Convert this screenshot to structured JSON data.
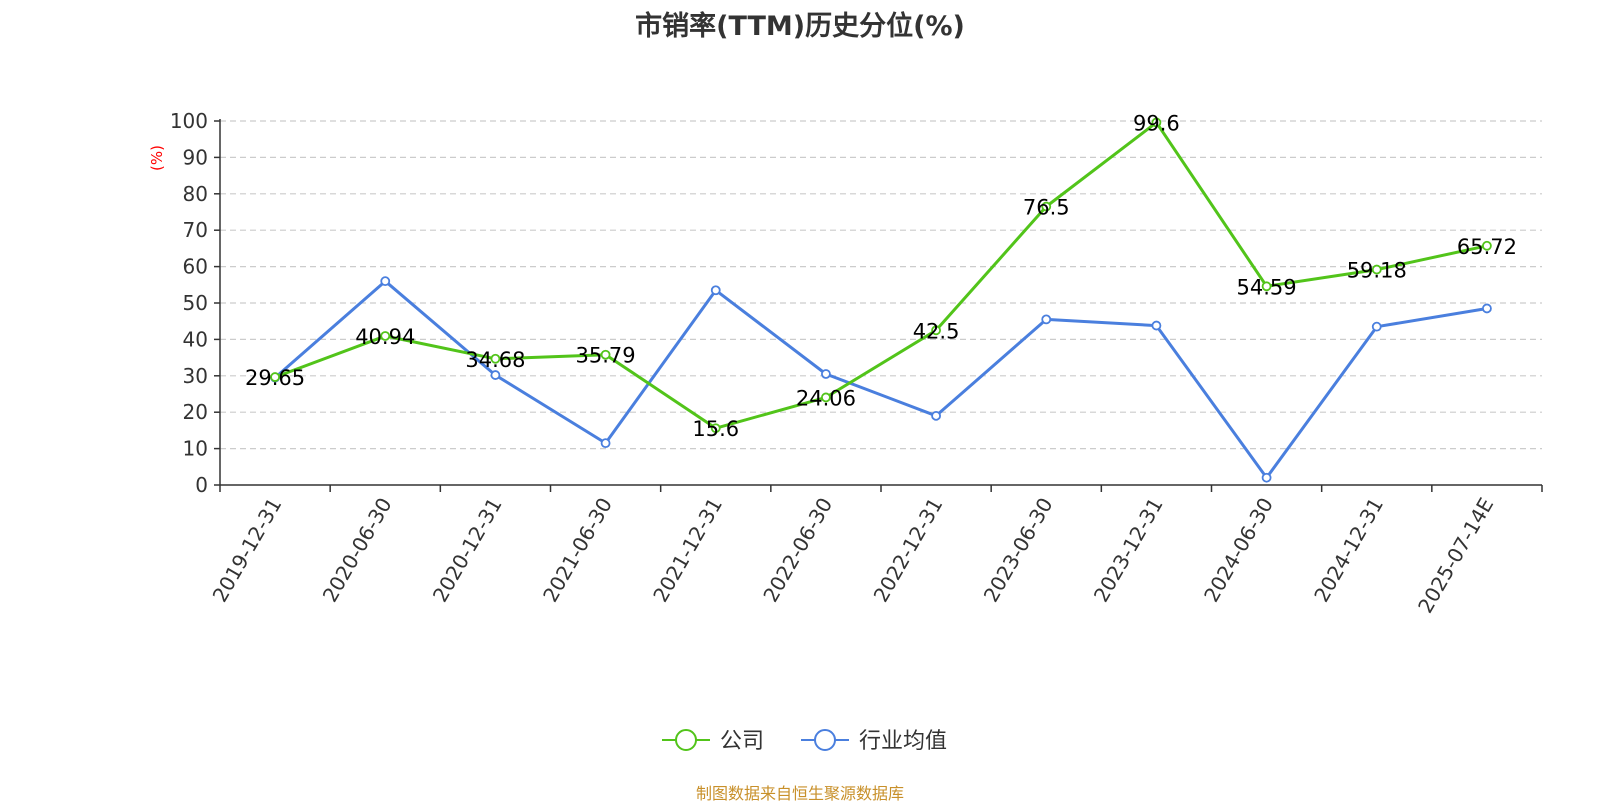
{
  "title": "市销率(TTM)历史分位(%)",
  "source": "制图数据来自恒生聚源数据库",
  "colors": {
    "company": "#52c41a",
    "industry": "#4a7fde",
    "ylabel": "#ff0000",
    "source": "#c8902a",
    "grid": "#cccccc",
    "axis": "#333333"
  },
  "chart_data": {
    "type": "line",
    "title": "市销率(TTM)历史分位(%)",
    "xlabel": "",
    "ylabel": "(%)",
    "ylim": [
      0,
      100
    ],
    "yticks": [
      0,
      10,
      20,
      30,
      40,
      50,
      60,
      70,
      80,
      90,
      100
    ],
    "categories": [
      "2019-12-31",
      "2020-06-30",
      "2020-12-31",
      "2021-06-30",
      "2021-12-31",
      "2022-06-30",
      "2022-12-31",
      "2023-06-30",
      "2023-12-31",
      "2024-06-30",
      "2024-12-31",
      "2025-07-14E"
    ],
    "grid": true,
    "legend_position": "bottom-center",
    "series": [
      {
        "name": "公司",
        "values": [
          29.65,
          40.94,
          34.68,
          35.79,
          15.6,
          24.06,
          42.5,
          76.5,
          99.6,
          54.59,
          59.18,
          65.72
        ],
        "labels": [
          "29.65",
          "40.94",
          "34.68",
          "35.79",
          "15.6",
          "24.06",
          "42.5",
          "76.5",
          "99.6",
          "54.59",
          "59.18",
          "65.72"
        ],
        "show_labels": true
      },
      {
        "name": "行业均值",
        "values": [
          29.5,
          56,
          30.2,
          11.5,
          53.5,
          30.5,
          19,
          45.5,
          43.8,
          2,
          43.5,
          48.5
        ],
        "show_labels": false
      }
    ]
  }
}
